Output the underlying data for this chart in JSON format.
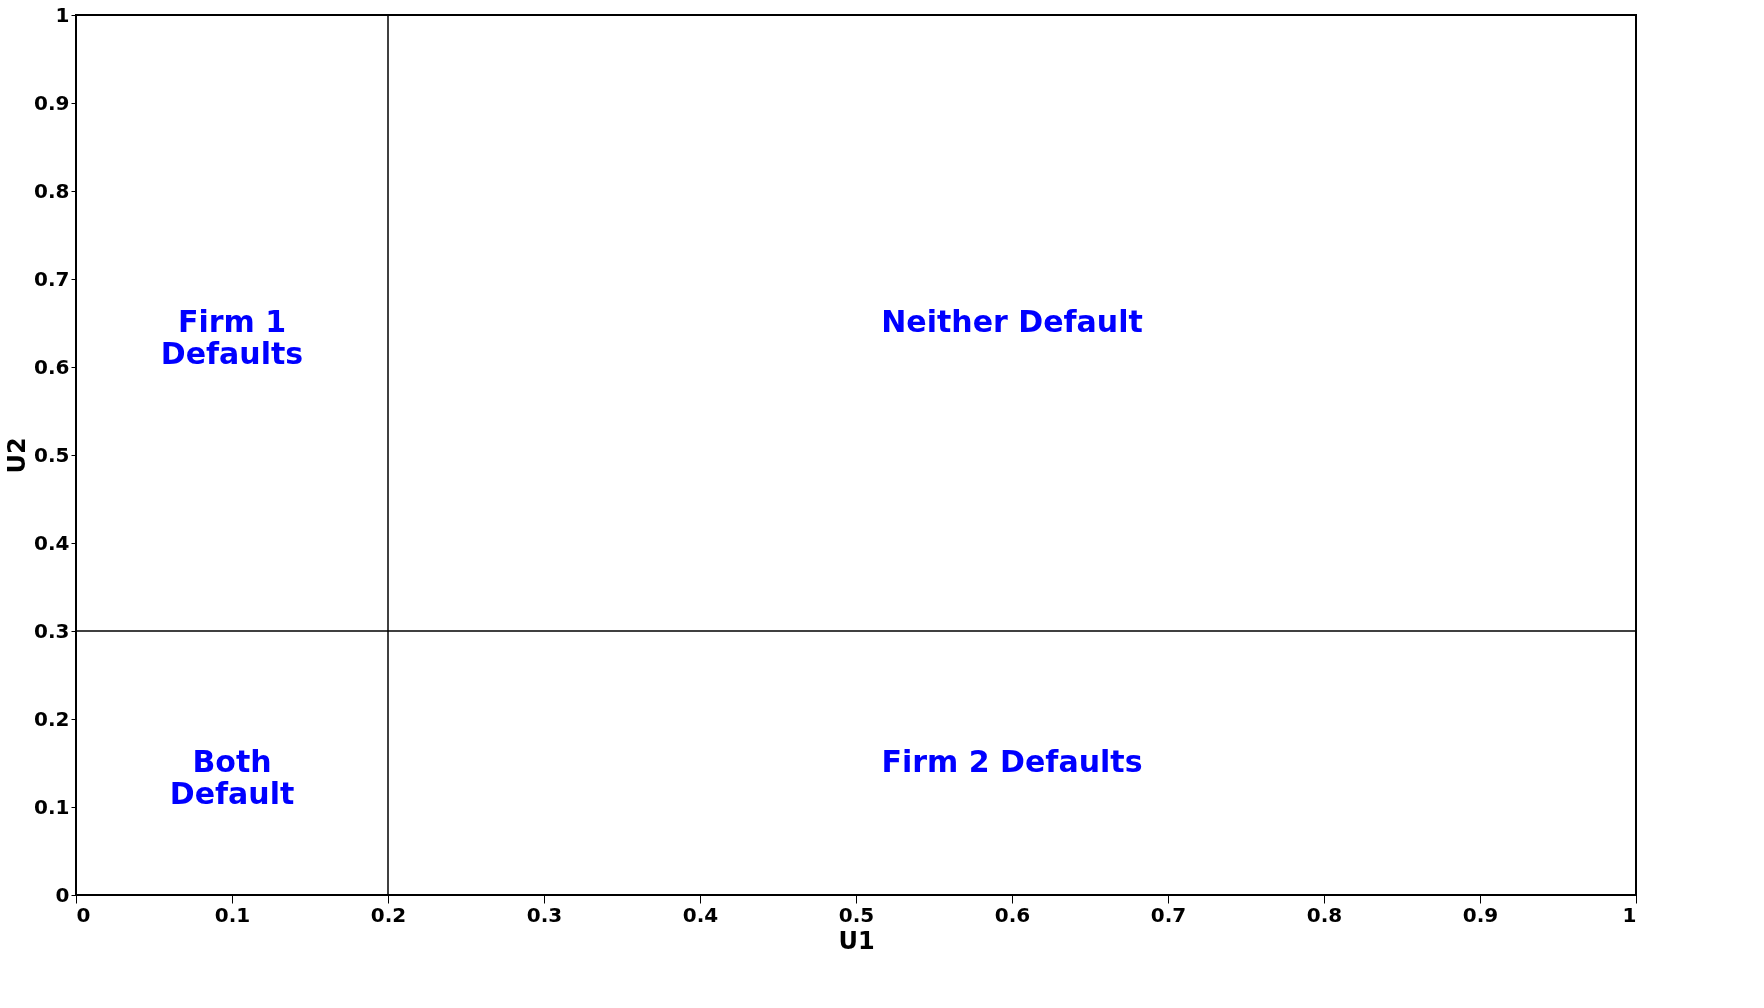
{
  "chart_data": {
    "type": "scatter",
    "xlabel": "U1",
    "ylabel": "U2",
    "xlim": [
      0,
      1
    ],
    "ylim": [
      0,
      1
    ],
    "xticks": [
      0,
      0.1,
      0.2,
      0.3,
      0.4,
      0.5,
      0.6,
      0.7,
      0.8,
      0.9,
      1
    ],
    "yticks": [
      0,
      0.1,
      0.2,
      0.3,
      0.4,
      0.5,
      0.6,
      0.7,
      0.8,
      0.9,
      1
    ],
    "ref_lines": [
      {
        "axis": "x",
        "value": 0.2,
        "color": "#000000"
      },
      {
        "axis": "y",
        "value": 0.3,
        "color": "#000000"
      }
    ],
    "annotations": [
      "Firm 1\nDefaults",
      "Neither Default",
      "Both\nDefault",
      "Firm 2 Defaults"
    ]
  }
}
